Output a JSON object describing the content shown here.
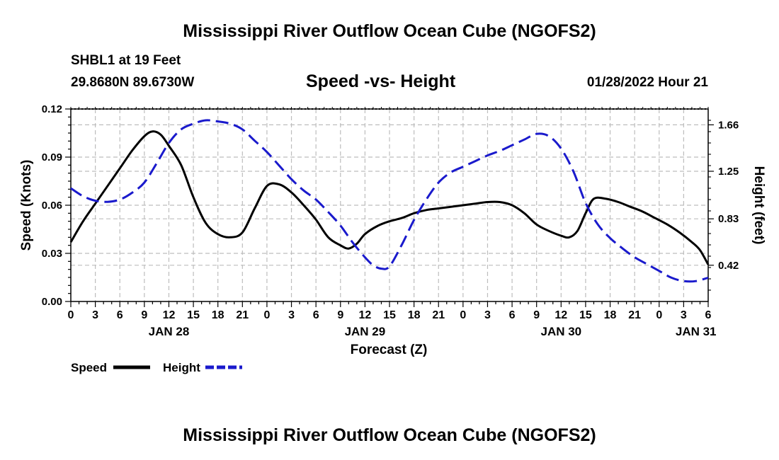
{
  "header": {
    "title": "Mississippi River Outflow Ocean Cube (NGOFS2)",
    "station": "SHBL1 at 19 Feet",
    "coords": "29.8680N  89.6730W",
    "subtitle": "Speed -vs- Height",
    "timestamp": "01/28/2022 Hour 21"
  },
  "footer": {
    "title": "Mississippi River Outflow Ocean Cube (NGOFS2)"
  },
  "chart_data": {
    "type": "line",
    "title": "Speed -vs- Height",
    "xlabel": "Forecast (Z)",
    "ylabel": "Speed (Knots)",
    "y2label": "Height (feet)",
    "x_range_hours": [
      0,
      78
    ],
    "ylim": [
      0,
      0.12
    ],
    "y2lim": [
      0.1,
      1.8
    ],
    "x_ticks": [
      {
        "h": 0,
        "label": "0"
      },
      {
        "h": 3,
        "label": "3"
      },
      {
        "h": 6,
        "label": "6"
      },
      {
        "h": 9,
        "label": "9"
      },
      {
        "h": 12,
        "label": "12"
      },
      {
        "h": 15,
        "label": "15"
      },
      {
        "h": 18,
        "label": "18"
      },
      {
        "h": 21,
        "label": "21"
      },
      {
        "h": 24,
        "label": "0"
      },
      {
        "h": 27,
        "label": "3"
      },
      {
        "h": 30,
        "label": "6"
      },
      {
        "h": 33,
        "label": "9"
      },
      {
        "h": 36,
        "label": "12"
      },
      {
        "h": 39,
        "label": "15"
      },
      {
        "h": 42,
        "label": "18"
      },
      {
        "h": 45,
        "label": "21"
      },
      {
        "h": 48,
        "label": "0"
      },
      {
        "h": 51,
        "label": "3"
      },
      {
        "h": 54,
        "label": "6"
      },
      {
        "h": 57,
        "label": "9"
      },
      {
        "h": 60,
        "label": "12"
      },
      {
        "h": 63,
        "label": "15"
      },
      {
        "h": 66,
        "label": "18"
      },
      {
        "h": 69,
        "label": "21"
      },
      {
        "h": 72,
        "label": "0"
      },
      {
        "h": 75,
        "label": "3"
      },
      {
        "h": 78,
        "label": "6"
      }
    ],
    "date_labels": [
      {
        "h": 12,
        "label": "JAN 28"
      },
      {
        "h": 36,
        "label": "JAN 29"
      },
      {
        "h": 60,
        "label": "JAN 30"
      },
      {
        "h": 76.5,
        "label": "JAN 31"
      }
    ],
    "y_ticks": [
      {
        "v": 0.0,
        "label": "0.00"
      },
      {
        "v": 0.03,
        "label": "0.03"
      },
      {
        "v": 0.06,
        "label": "0.06"
      },
      {
        "v": 0.09,
        "label": "0.09"
      },
      {
        "v": 0.12,
        "label": "0.12"
      }
    ],
    "y2_ticks": [
      {
        "v": 0.42,
        "label": "0.42"
      },
      {
        "v": 0.83,
        "label": "0.83"
      },
      {
        "v": 1.25,
        "label": "1.25"
      },
      {
        "v": 1.66,
        "label": "1.66"
      }
    ],
    "legend": {
      "position": "bottom-left",
      "speed_label": "Speed",
      "height_label": "Height"
    },
    "series": [
      {
        "name": "Speed",
        "axis": "left",
        "color": "#000000",
        "style": "solid",
        "x": [
          0,
          1.5,
          3,
          4.5,
          6,
          7.5,
          9,
          10,
          11,
          12,
          13.5,
          15,
          16.5,
          18,
          19.5,
          21,
          22.5,
          24,
          25.5,
          27,
          28.5,
          30,
          31.5,
          33,
          34,
          35,
          36,
          37.5,
          39,
          40.5,
          42,
          43.5,
          45,
          46.5,
          48,
          49.5,
          51,
          52.5,
          54,
          55.5,
          57,
          58.5,
          60,
          61,
          62,
          63,
          64,
          65.5,
          67,
          68.5,
          70,
          71.5,
          73,
          74.5,
          76,
          77,
          78
        ],
        "values": [
          0.037,
          0.05,
          0.061,
          0.072,
          0.083,
          0.094,
          0.103,
          0.106,
          0.104,
          0.097,
          0.085,
          0.065,
          0.049,
          0.042,
          0.04,
          0.043,
          0.058,
          0.072,
          0.073,
          0.068,
          0.06,
          0.051,
          0.04,
          0.035,
          0.033,
          0.036,
          0.042,
          0.047,
          0.05,
          0.052,
          0.055,
          0.057,
          0.058,
          0.059,
          0.06,
          0.061,
          0.062,
          0.062,
          0.06,
          0.055,
          0.048,
          0.044,
          0.041,
          0.04,
          0.044,
          0.055,
          0.064,
          0.064,
          0.062,
          0.059,
          0.056,
          0.052,
          0.048,
          0.043,
          0.037,
          0.032,
          0.023
        ]
      },
      {
        "name": "Height",
        "axis": "right",
        "color": "#1a1acc",
        "style": "dashed",
        "x": [
          0,
          1.5,
          3,
          4.5,
          6,
          7.5,
          9,
          10.5,
          12,
          13.5,
          15,
          16.5,
          18,
          19.5,
          21,
          22.5,
          24,
          25.5,
          27,
          28.5,
          30,
          31.5,
          33,
          34.5,
          36,
          37,
          38,
          39,
          40.5,
          42,
          43.5,
          45,
          46.5,
          48,
          49.5,
          51,
          52.5,
          54,
          55.5,
          57,
          58.5,
          60,
          61.5,
          63,
          64.5,
          66,
          67.5,
          69,
          70.5,
          72,
          73.5,
          75,
          76.5,
          78
        ],
        "values": [
          1.1,
          1.03,
          0.99,
          0.98,
          1.0,
          1.06,
          1.15,
          1.32,
          1.5,
          1.62,
          1.67,
          1.7,
          1.69,
          1.67,
          1.62,
          1.52,
          1.42,
          1.3,
          1.18,
          1.08,
          1.0,
          0.89,
          0.77,
          0.62,
          0.49,
          0.42,
          0.39,
          0.41,
          0.6,
          0.82,
          1.0,
          1.15,
          1.24,
          1.29,
          1.34,
          1.39,
          1.43,
          1.48,
          1.53,
          1.58,
          1.56,
          1.45,
          1.25,
          0.97,
          0.78,
          0.66,
          0.57,
          0.49,
          0.43,
          0.37,
          0.31,
          0.28,
          0.28,
          0.31
        ]
      }
    ]
  }
}
